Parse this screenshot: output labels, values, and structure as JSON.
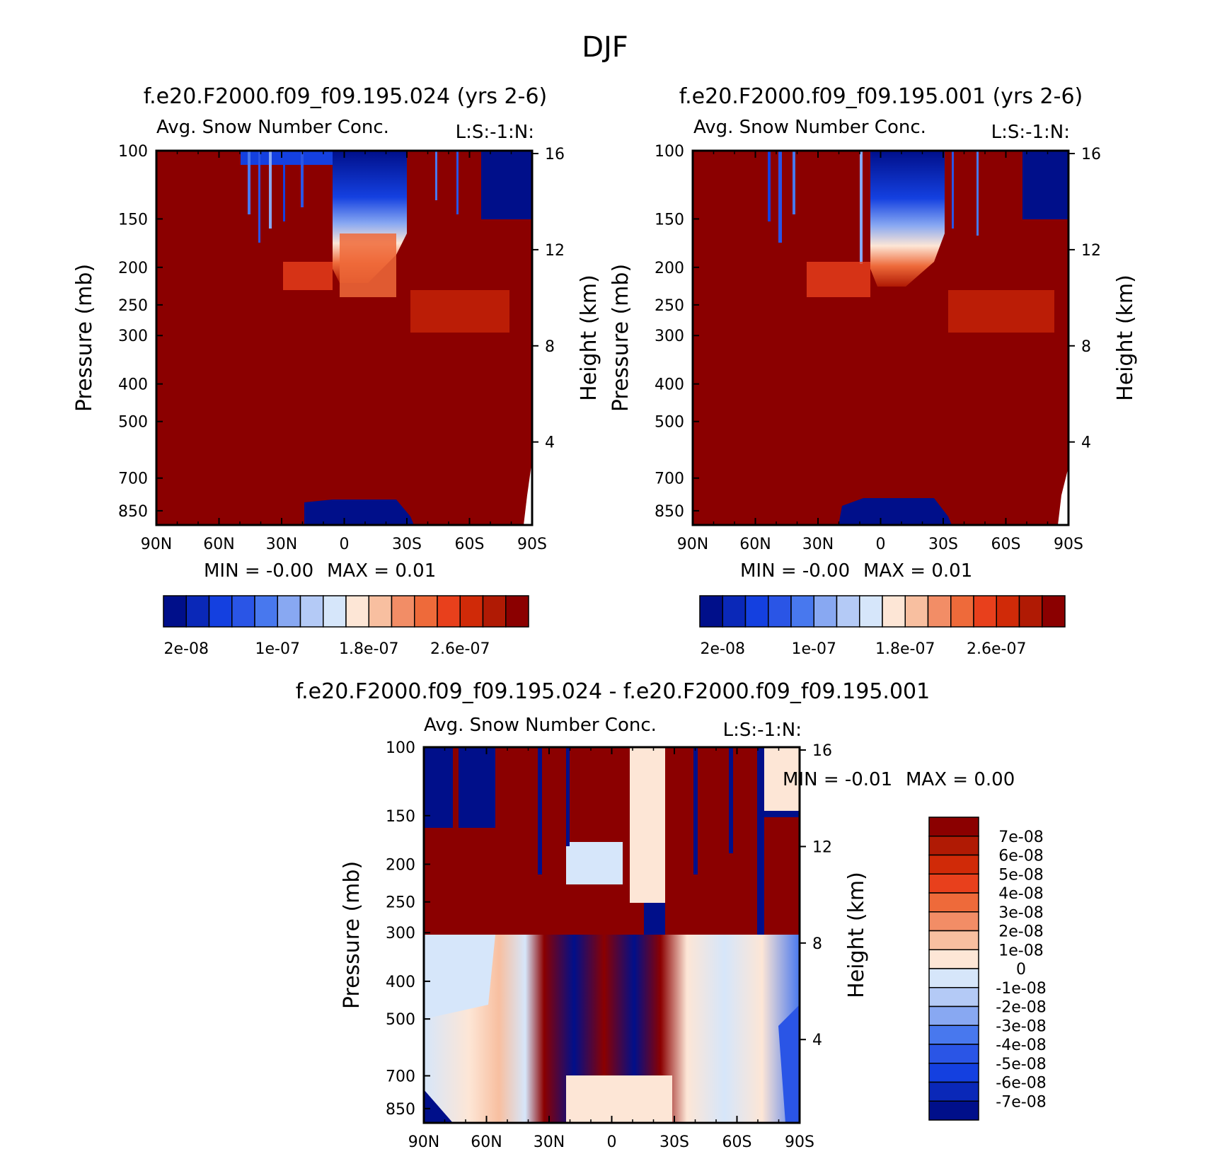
{
  "title": "DJF",
  "colors": {
    "pos_max": "#8b0000",
    "pos_mid": "#e8401c",
    "neutral_warm": "#fde6d6",
    "neutral_cool": "#d6e6fa",
    "neg_mid": "#2a55e6",
    "neg_max": "#000f8a"
  },
  "chart_data": [
    {
      "id": "panel-024",
      "type": "heatmap",
      "title": "f.e20.F2000.f09_f09.195.024 (yrs 2-6)",
      "subtitle": "Avg. Snow Number Conc.",
      "subtitle_right": "L:S:-1:N:",
      "xlabel": "",
      "ylabel": "Pressure (mb)",
      "ylabel_right": "Height (km)",
      "xticks": [
        "90N",
        "60N",
        "30N",
        "0",
        "30S",
        "60S",
        "90S"
      ],
      "xlim": [
        90,
        -90
      ],
      "yticks": [
        100,
        150,
        200,
        250,
        300,
        400,
        500,
        700,
        850
      ],
      "ylim": [
        100,
        925
      ],
      "height_ticks": [
        16,
        12,
        8,
        4
      ],
      "min_text": "MIN =   -0.00",
      "max_text": "MAX =    0.01",
      "colorbar_labels": [
        "2e-08",
        "1e-07",
        "1.8e-07",
        "2.6e-07"
      ],
      "colorbar_levels": [
        2e-08,
        4e-08,
        6e-08,
        8e-08,
        1e-07,
        1.2e-07,
        1.4e-07,
        1.6e-07,
        1.8e-07,
        2e-07,
        2.2e-07,
        2.4e-07,
        2.6e-07,
        2.8e-07
      ],
      "colorbar_colors": [
        "#000f8a",
        "#0a28b8",
        "#1440e0",
        "#2a55e6",
        "#4878ee",
        "#88a8f2",
        "#b4caf6",
        "#d6e6fa",
        "#fde6d6",
        "#f8bfa0",
        "#f28d66",
        "#ee6a3a",
        "#e8401c",
        "#d02a08",
        "#b01a04",
        "#8b0000"
      ],
      "dominant_value": "> 2.8e-07 (dark red) below ~250 mb",
      "low_regions": [
        {
          "lat_range": [
            20,
            -30
          ],
          "pressure_range": [
            780,
            925
          ],
          "level": "< 2e-08"
        },
        {
          "lat_range": [
            0,
            -25
          ],
          "pressure_range": [
            100,
            200
          ],
          "level": "2e-08 to 1.6e-07"
        },
        {
          "lat_range": [
            -70,
            -90
          ],
          "pressure_range": [
            100,
            150
          ],
          "level": "< 2e-08"
        }
      ]
    },
    {
      "id": "panel-001",
      "type": "heatmap",
      "title": "f.e20.F2000.f09_f09.195.001 (yrs 2-6)",
      "subtitle": "Avg. Snow Number Conc.",
      "subtitle_right": "L:S:-1:N:",
      "xlabel": "",
      "ylabel": "Pressure (mb)",
      "ylabel_right": "Height (km)",
      "xticks": [
        "90N",
        "60N",
        "30N",
        "0",
        "30S",
        "60S",
        "90S"
      ],
      "xlim": [
        90,
        -90
      ],
      "yticks": [
        100,
        150,
        200,
        250,
        300,
        400,
        500,
        700,
        850
      ],
      "ylim": [
        100,
        925
      ],
      "height_ticks": [
        16,
        12,
        8,
        4
      ],
      "min_text": "MIN =   -0.00",
      "max_text": "MAX =    0.01",
      "colorbar_labels": [
        "2e-08",
        "1e-07",
        "1.8e-07",
        "2.6e-07"
      ],
      "colorbar_levels": [
        2e-08,
        4e-08,
        6e-08,
        8e-08,
        1e-07,
        1.2e-07,
        1.4e-07,
        1.6e-07,
        1.8e-07,
        2e-07,
        2.2e-07,
        2.4e-07,
        2.6e-07,
        2.8e-07
      ],
      "colorbar_colors": [
        "#000f8a",
        "#0a28b8",
        "#1440e0",
        "#2a55e6",
        "#4878ee",
        "#88a8f2",
        "#b4caf6",
        "#d6e6fa",
        "#fde6d6",
        "#f8bfa0",
        "#f28d66",
        "#ee6a3a",
        "#e8401c",
        "#d02a08",
        "#b01a04",
        "#8b0000"
      ],
      "dominant_value": "> 2.8e-07 (dark red) below ~250 mb",
      "low_regions": [
        {
          "lat_range": [
            20,
            -30
          ],
          "pressure_range": [
            780,
            925
          ],
          "level": "< 2e-08"
        },
        {
          "lat_range": [
            5,
            -30
          ],
          "pressure_range": [
            100,
            200
          ],
          "level": "2e-08 to 1.6e-07"
        },
        {
          "lat_range": [
            -65,
            -90
          ],
          "pressure_range": [
            100,
            150
          ],
          "level": "< 2e-08"
        }
      ]
    },
    {
      "id": "panel-diff",
      "type": "heatmap",
      "title": "f.e20.F2000.f09_f09.195.024 - f.e20.F2000.f09_f09.195.001",
      "subtitle": "Avg. Snow Number Conc.",
      "subtitle_right": "L:S:-1:N:",
      "xlabel": "",
      "ylabel": "Pressure (mb)",
      "ylabel_right": "Height (km)",
      "xticks": [
        "90N",
        "60N",
        "30N",
        "0",
        "30S",
        "60S",
        "90S"
      ],
      "xlim": [
        90,
        -90
      ],
      "yticks": [
        100,
        150,
        200,
        250,
        300,
        400,
        500,
        700,
        850
      ],
      "ylim": [
        100,
        925
      ],
      "height_ticks": [
        16,
        12,
        8,
        4
      ],
      "min_text": "MIN =   -0.01",
      "max_text": "MAX =    0.00",
      "colorbar_labels": [
        "7e-08",
        "6e-08",
        "5e-08",
        "4e-08",
        "3e-08",
        "2e-08",
        "1e-08",
        "0",
        "-1e-08",
        "-2e-08",
        "-3e-08",
        "-4e-08",
        "-5e-08",
        "-6e-08",
        "-7e-08"
      ],
      "colorbar_colors": [
        "#8b0000",
        "#b01a04",
        "#d02a08",
        "#e8401c",
        "#ee6a3a",
        "#f28d66",
        "#f8bfa0",
        "#fde6d6",
        "#d6e6fa",
        "#b4caf6",
        "#88a8f2",
        "#4878ee",
        "#2a55e6",
        "#1440e0",
        "#0a28b8",
        "#000f8a"
      ]
    }
  ]
}
